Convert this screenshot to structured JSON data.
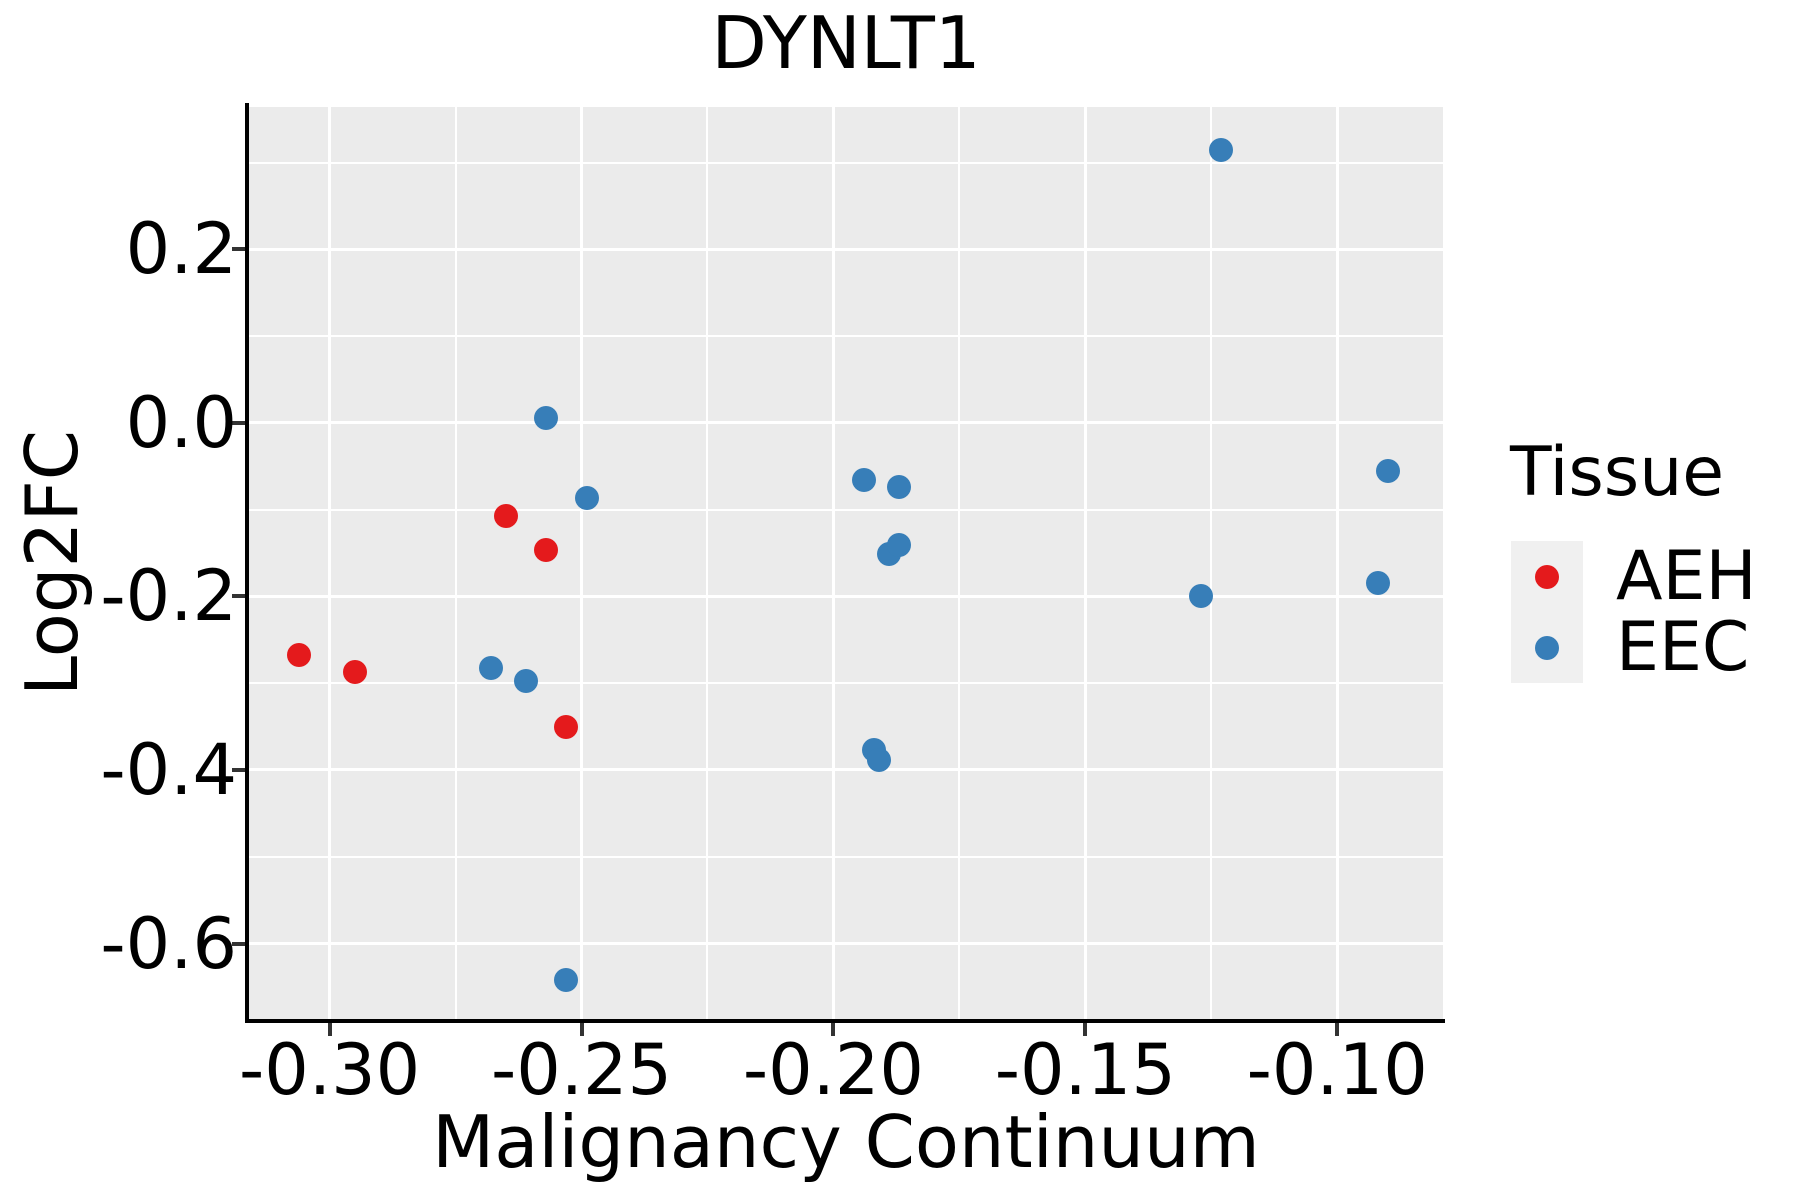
{
  "title": "DYNLT1",
  "axes": {
    "x_label": "Malignancy Continuum",
    "y_label": "Log2FC"
  },
  "legend": {
    "title": "Tissue",
    "items": [
      {
        "label": "AEH",
        "color": "#E41A1C"
      },
      {
        "label": "EEC",
        "color": "#377EB8"
      }
    ]
  },
  "colors": {
    "panel_background": "#EBEBEB",
    "gridline": "#FFFFFF",
    "axis_line": "#000000",
    "tick_mark": "#333333",
    "legend_key_background": "#F0F0F0",
    "aeh": "#E41A1C",
    "eec": "#377EB8"
  },
  "chart_data": {
    "type": "scatter",
    "title": "DYNLT1",
    "xlabel": "Malignancy Continuum",
    "ylabel": "Log2FC",
    "xlim": [
      -0.316,
      -0.079
    ],
    "ylim": [
      -0.687,
      0.364
    ],
    "grid": true,
    "legend_position": "right",
    "x_ticks": [
      -0.3,
      -0.25,
      -0.2,
      -0.15,
      -0.1
    ],
    "x_tick_labels": [
      "-0.30",
      "-0.25",
      "-0.20",
      "-0.15",
      "-0.10"
    ],
    "x_minor_ticks": [
      -0.275,
      -0.225,
      -0.175,
      -0.125
    ],
    "y_ticks": [
      0.2,
      0.0,
      -0.2,
      -0.4,
      -0.6
    ],
    "y_tick_labels": [
      "0.2",
      "0.0",
      "-0.2",
      "-0.4",
      "-0.6"
    ],
    "y_minor_ticks": [
      0.3,
      0.1,
      -0.1,
      -0.3,
      -0.5
    ],
    "series": [
      {
        "name": "AEH",
        "color": "#E41A1C",
        "points": [
          [
            -0.306,
            -0.267
          ],
          [
            -0.295,
            -0.287
          ],
          [
            -0.265,
            -0.107
          ],
          [
            -0.257,
            -0.147
          ],
          [
            -0.253,
            -0.351
          ]
        ]
      },
      {
        "name": "EEC",
        "color": "#377EB8",
        "points": [
          [
            -0.268,
            -0.282
          ],
          [
            -0.261,
            -0.297
          ],
          [
            -0.257,
            0.006
          ],
          [
            -0.253,
            -0.642
          ],
          [
            -0.249,
            -0.087
          ],
          [
            -0.194,
            -0.066
          ],
          [
            -0.192,
            -0.377
          ],
          [
            -0.191,
            -0.389
          ],
          [
            -0.189,
            -0.151
          ],
          [
            -0.187,
            -0.074
          ],
          [
            -0.187,
            -0.141
          ],
          [
            -0.127,
            -0.2
          ],
          [
            -0.123,
            0.315
          ],
          [
            -0.092,
            -0.184
          ],
          [
            -0.09,
            -0.056
          ]
        ]
      }
    ]
  }
}
